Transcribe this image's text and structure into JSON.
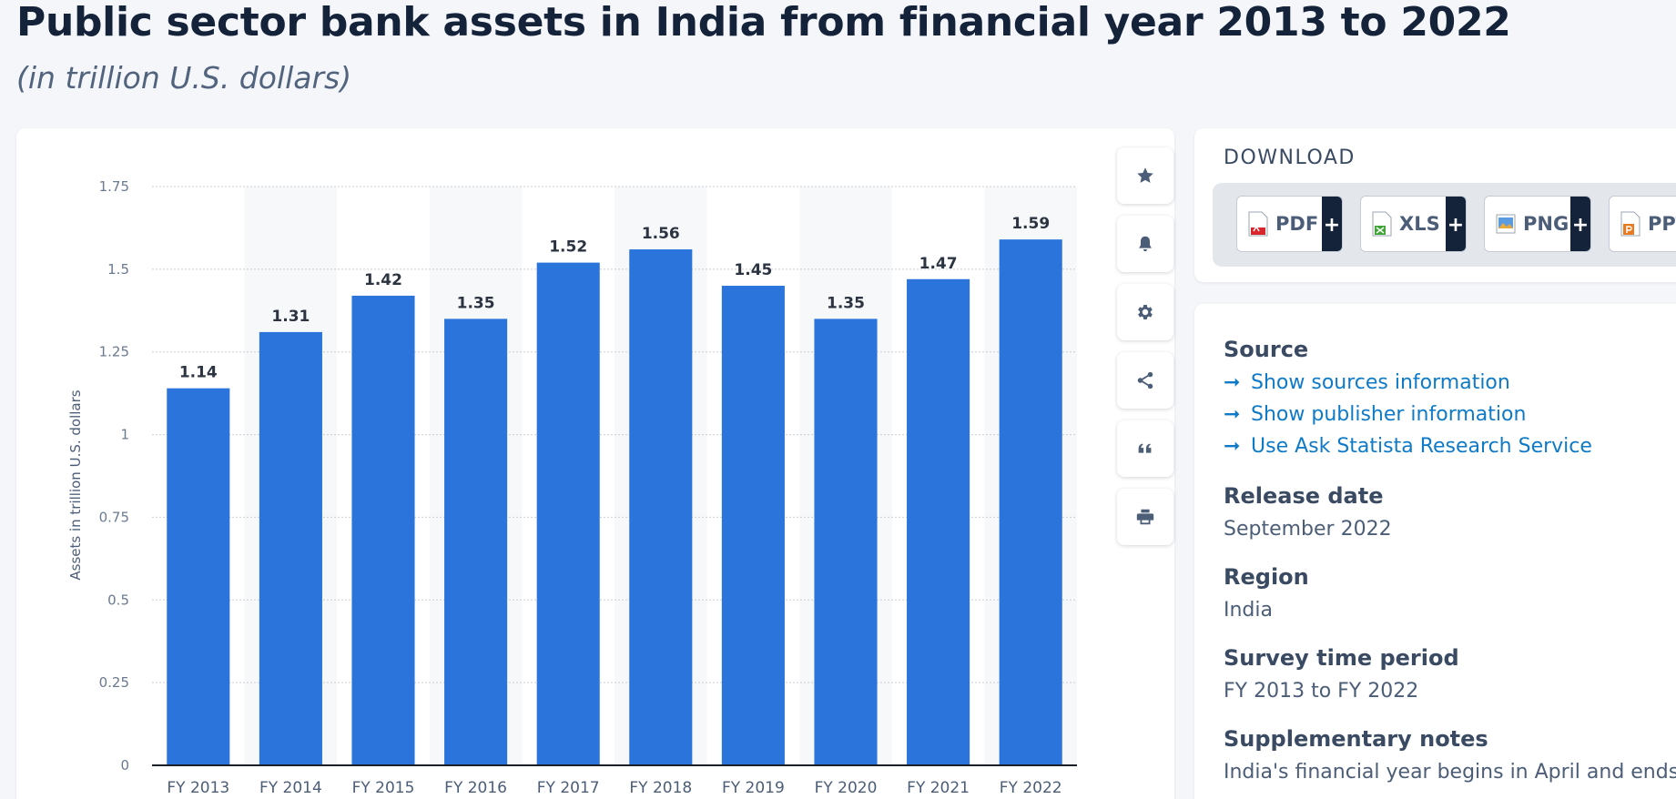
{
  "header": {
    "title": "Public sector bank assets in India from financial year 2013 to 2022",
    "subtitle": "(in trillion U.S. dollars)"
  },
  "chart_data": {
    "type": "bar",
    "categories": [
      "FY 2013",
      "FY 2014",
      "FY 2015",
      "FY 2016",
      "FY 2017",
      "FY 2018",
      "FY 2019",
      "FY 2020",
      "FY 2021",
      "FY 2022"
    ],
    "values": [
      1.14,
      1.31,
      1.42,
      1.35,
      1.52,
      1.56,
      1.45,
      1.35,
      1.47,
      1.59
    ],
    "value_labels": [
      "1.14",
      "1.31",
      "1.42",
      "1.35",
      "1.52",
      "1.56",
      "1.45",
      "1.35",
      "1.47",
      "1.59"
    ],
    "ylabel": "Assets in trillion U.S. dollars",
    "xlabel": "",
    "ylim": [
      0,
      1.75
    ],
    "yticks": [
      0,
      0.25,
      0.5,
      0.75,
      1,
      1.25,
      1.5,
      1.75
    ],
    "ytick_labels": [
      "0",
      "0.25",
      "0.5",
      "0.75",
      "1",
      "1.25",
      "1.5",
      "1.75"
    ],
    "grid": true,
    "bar_color": "#2a74dc"
  },
  "toolbar": {
    "icons": [
      "star-icon",
      "bell-icon",
      "gear-icon",
      "share-icon",
      "quote-icon",
      "print-icon"
    ]
  },
  "download": {
    "title": "DOWNLOAD",
    "buttons": [
      {
        "label": "PDF",
        "icon": "pdf-file-icon",
        "plus": "+"
      },
      {
        "label": "XLS",
        "icon": "xls-file-icon",
        "plus": "+"
      },
      {
        "label": "PNG",
        "icon": "png-file-icon",
        "plus": "+"
      },
      {
        "label": "PPT",
        "icon": "ppt-file-icon",
        "plus": "+"
      }
    ]
  },
  "info": {
    "source_heading": "Source",
    "links": [
      "Show sources information",
      "Show publisher information",
      "Use Ask Statista Research Service"
    ],
    "release_heading": "Release date",
    "release_value": "September 2022",
    "region_heading": "Region",
    "region_value": "India",
    "survey_heading": "Survey time period",
    "survey_value": "FY 2013 to FY 2022",
    "notes_heading": "Supplementary notes",
    "notes_value": "India's financial year begins in April and ends in"
  },
  "colors": {
    "accent": "#0e7ac8",
    "bar": "#2a74dc",
    "title": "#14223a"
  }
}
